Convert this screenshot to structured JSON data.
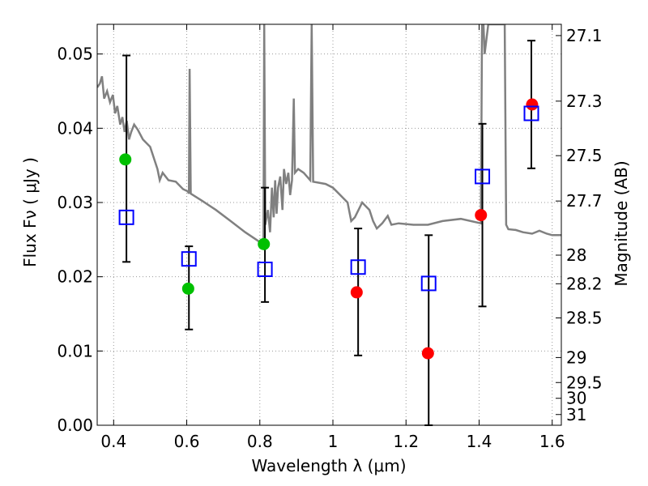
{
  "chart_data": {
    "type": "scatter",
    "xlabel": "Wavelength  λ (μm)",
    "ylabel": "Flux  Fν  ( μJy )",
    "y2label": "Magnitude (AB)",
    "xlim": [
      0.355,
      1.625
    ],
    "ylim": [
      0.0,
      0.054
    ],
    "grid": true,
    "xticks": [
      {
        "v": 0.4,
        "label": "0.4"
      },
      {
        "v": 0.6,
        "label": "0.6"
      },
      {
        "v": 0.8,
        "label": "0.8"
      },
      {
        "v": 1.0,
        "label": "1"
      },
      {
        "v": 1.2,
        "label": "1.2"
      },
      {
        "v": 1.4,
        "label": "1.4"
      },
      {
        "v": 1.6,
        "label": "1.6"
      }
    ],
    "yticks": [
      {
        "v": 0.0,
        "label": "0.00"
      },
      {
        "v": 0.01,
        "label": "0.01"
      },
      {
        "v": 0.02,
        "label": "0.02"
      },
      {
        "v": 0.03,
        "label": "0.03"
      },
      {
        "v": 0.04,
        "label": "0.04"
      },
      {
        "v": 0.05,
        "label": "0.05"
      }
    ],
    "y2ticks": [
      {
        "mag": 27.1,
        "label": "27.1"
      },
      {
        "mag": 27.3,
        "label": "27.3"
      },
      {
        "mag": 27.5,
        "label": "27.5"
      },
      {
        "mag": 27.7,
        "label": "27.7"
      },
      {
        "mag": 28.0,
        "label": "28"
      },
      {
        "mag": 28.2,
        "label": "28.2"
      },
      {
        "mag": 28.5,
        "label": "28.5"
      },
      {
        "mag": 29.0,
        "label": "29"
      },
      {
        "mag": 29.5,
        "label": "29.5"
      },
      {
        "mag": 30.0,
        "label": "30"
      },
      {
        "mag": 31.0,
        "label": "31"
      }
    ],
    "colors": {
      "model": "#808080",
      "observed": "#0000ff",
      "red_points": "#ff0000",
      "green_points": "#00c000",
      "errorbar": "#000000",
      "grid": "#9a9a9a"
    },
    "series": [
      {
        "marker": "open-square",
        "points": [
          {
            "x": 0.435,
            "y": 0.028,
            "yerr_low": 0.022,
            "yerr_high": 0.0498
          },
          {
            "x": 0.606,
            "y": 0.0224,
            "yerr_low": 0.0129,
            "yerr_high": 0.0241
          },
          {
            "x": 0.814,
            "y": 0.021,
            "yerr_low": 0.0166,
            "yerr_high": 0.032
          },
          {
            "x": 1.069,
            "y": 0.0213,
            "yerr_low": 0.0094,
            "yerr_high": 0.0265
          },
          {
            "x": 1.262,
            "y": 0.0191,
            "yerr_low": 0.0,
            "yerr_high": 0.0256
          },
          {
            "x": 1.409,
            "y": 0.0335,
            "yerr_low": 0.016,
            "yerr_high": 0.0406
          },
          {
            "x": 1.543,
            "y": 0.042,
            "yerr_low": 0.0346,
            "yerr_high": 0.0518
          }
        ]
      },
      {
        "marker": "filled-circle-red",
        "points": [
          {
            "x": 1.065,
            "y": 0.0179
          },
          {
            "x": 1.26,
            "y": 0.0097
          },
          {
            "x": 1.405,
            "y": 0.0283
          },
          {
            "x": 1.545,
            "y": 0.0432
          }
        ]
      },
      {
        "marker": "filled-circle-green",
        "points": [
          {
            "x": 0.432,
            "y": 0.0358
          },
          {
            "x": 0.604,
            "y": 0.0184
          },
          {
            "x": 0.811,
            "y": 0.0244
          }
        ]
      },
      {
        "type": "line",
        "points": [
          [
            0.355,
            0.0455
          ],
          [
            0.362,
            0.046
          ],
          [
            0.368,
            0.047
          ],
          [
            0.374,
            0.044
          ],
          [
            0.382,
            0.045
          ],
          [
            0.39,
            0.0435
          ],
          [
            0.398,
            0.0445
          ],
          [
            0.404,
            0.042
          ],
          [
            0.41,
            0.043
          ],
          [
            0.418,
            0.0405
          ],
          [
            0.424,
            0.0415
          ],
          [
            0.43,
            0.0395
          ],
          [
            0.436,
            0.041
          ],
          [
            0.442,
            0.0385
          ],
          [
            0.448,
            0.0395
          ],
          [
            0.456,
            0.0405
          ],
          [
            0.466,
            0.0398
          ],
          [
            0.48,
            0.0385
          ],
          [
            0.5,
            0.0375
          ],
          [
            0.51,
            0.036
          ],
          [
            0.52,
            0.0345
          ],
          [
            0.526,
            0.033
          ],
          [
            0.534,
            0.034
          ],
          [
            0.55,
            0.033
          ],
          [
            0.57,
            0.0328
          ],
          [
            0.59,
            0.0318
          ],
          [
            0.603,
            0.0315
          ],
          [
            0.606,
            0.0312
          ],
          [
            0.608,
            0.048
          ],
          [
            0.611,
            0.0312
          ],
          [
            0.64,
            0.0303
          ],
          [
            0.68,
            0.029
          ],
          [
            0.72,
            0.0275
          ],
          [
            0.76,
            0.026
          ],
          [
            0.79,
            0.025
          ],
          [
            0.805,
            0.0245
          ],
          [
            0.81,
            0.025
          ],
          [
            0.812,
            0.054
          ],
          [
            0.815,
            0.027
          ],
          [
            0.822,
            0.029
          ],
          [
            0.828,
            0.026
          ],
          [
            0.833,
            0.032
          ],
          [
            0.838,
            0.028
          ],
          [
            0.842,
            0.033
          ],
          [
            0.846,
            0.0285
          ],
          [
            0.85,
            0.032
          ],
          [
            0.856,
            0.0335
          ],
          [
            0.862,
            0.029
          ],
          [
            0.866,
            0.0345
          ],
          [
            0.872,
            0.0325
          ],
          [
            0.878,
            0.034
          ],
          [
            0.883,
            0.031
          ],
          [
            0.888,
            0.033
          ],
          [
            0.893,
            0.044
          ],
          [
            0.896,
            0.034
          ],
          [
            0.905,
            0.0345
          ],
          [
            0.92,
            0.034
          ],
          [
            0.938,
            0.033
          ],
          [
            0.942,
            0.054
          ],
          [
            0.946,
            0.0328
          ],
          [
            0.98,
            0.0325
          ],
          [
            1.0,
            0.032
          ],
          [
            1.02,
            0.031
          ],
          [
            1.04,
            0.03
          ],
          [
            1.05,
            0.0275
          ],
          [
            1.06,
            0.028
          ],
          [
            1.07,
            0.029
          ],
          [
            1.08,
            0.03
          ],
          [
            1.09,
            0.0295
          ],
          [
            1.1,
            0.029
          ],
          [
            1.11,
            0.0275
          ],
          [
            1.12,
            0.0265
          ],
          [
            1.135,
            0.0272
          ],
          [
            1.15,
            0.0282
          ],
          [
            1.16,
            0.027
          ],
          [
            1.18,
            0.0272
          ],
          [
            1.22,
            0.027
          ],
          [
            1.26,
            0.027
          ],
          [
            1.3,
            0.0275
          ],
          [
            1.35,
            0.0278
          ],
          [
            1.405,
            0.0272
          ],
          [
            1.408,
            0.054
          ],
          [
            1.412,
            0.054
          ],
          [
            1.415,
            0.05
          ],
          [
            1.425,
            0.054
          ],
          [
            1.43,
            0.054
          ],
          [
            1.448,
            0.054
          ],
          [
            1.46,
            0.054
          ],
          [
            1.47,
            0.054
          ],
          [
            1.474,
            0.027
          ],
          [
            1.48,
            0.0264
          ],
          [
            1.5,
            0.0263
          ],
          [
            1.52,
            0.026
          ],
          [
            1.545,
            0.0258
          ],
          [
            1.565,
            0.0262
          ],
          [
            1.585,
            0.0258
          ],
          [
            1.6,
            0.0256
          ],
          [
            1.625,
            0.0256
          ]
        ]
      }
    ]
  }
}
